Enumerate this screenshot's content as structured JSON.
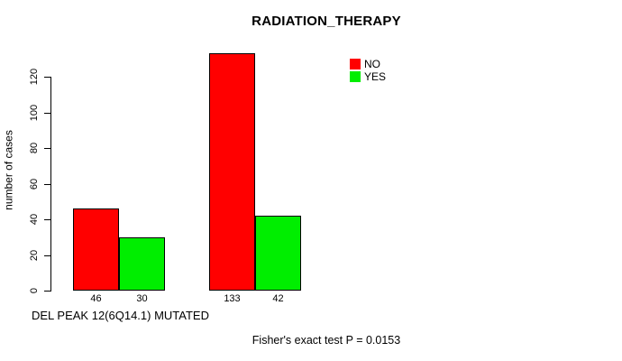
{
  "figure": {
    "title": "RADIATION_THERAPY",
    "annotation": "Fisher's exact test P = 0.0153"
  },
  "chart_data": {
    "type": "bar",
    "title": "RADIATION_THERAPY",
    "xlabel": "DEL PEAK 12(6Q14.1) MUTATED",
    "ylabel": "number of cases",
    "ylim": [
      0,
      133
    ],
    "yticks": [
      0,
      20,
      40,
      60,
      80,
      100,
      120
    ],
    "grid": false,
    "legend_position": "top-right",
    "series": [
      {
        "name": "NO",
        "color": "#ff0000",
        "values": [
          46,
          133
        ]
      },
      {
        "name": "YES",
        "color": "#00ee00",
        "values": [
          30,
          42
        ]
      }
    ],
    "bar_value_labels": [
      [
        "46",
        "30"
      ],
      [
        "133",
        "42"
      ]
    ],
    "annotation": "Fisher's exact test P = 0.0153",
    "colors": {
      "no": "#ff0000",
      "yes": "#00ee00",
      "axis": "#000000"
    }
  }
}
